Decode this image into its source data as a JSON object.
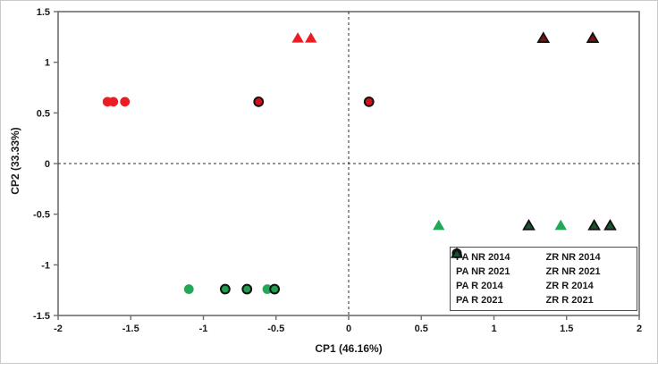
{
  "chart_data": {
    "type": "scatter",
    "xlabel": "CP1 (46.16%)",
    "ylabel": "CP2 (33.33%)",
    "xlim": [
      -2,
      2
    ],
    "ylim": [
      -1.5,
      1.5
    ],
    "x_ticks": [
      -2,
      -1.5,
      -1,
      -0.5,
      0,
      0.5,
      1,
      1.5,
      2
    ],
    "y_ticks": [
      1.5,
      1,
      0.5,
      0,
      -0.5,
      -1,
      -1.5
    ],
    "x_tick_labels": [
      "-2",
      "-1.5",
      "-1",
      "-0.5",
      "0",
      "0.5",
      "1",
      "1.5",
      "2"
    ],
    "y_tick_labels": [
      "1.5",
      "1",
      "0.5",
      "0",
      "-0.5",
      "-1",
      "-1.5"
    ],
    "grid": false,
    "reference_lines": {
      "vertical_at_x": 0,
      "horizontal_at_y": 0,
      "style": "dashed"
    },
    "legend_position": "bottom-right",
    "series": [
      {
        "name": "PA NR 2014",
        "marker": "circle",
        "fill": "#ed1c24",
        "outlined": false,
        "points": [
          [
            -1.66,
            0.61
          ],
          [
            -1.62,
            0.61
          ],
          [
            -1.54,
            0.61
          ]
        ]
      },
      {
        "name": "PA NR 2021",
        "marker": "triangle",
        "fill": "#ed1c24",
        "outlined": false,
        "points": [
          [
            -0.35,
            1.24
          ],
          [
            -0.26,
            1.24
          ]
        ]
      },
      {
        "name": "PA R 2014",
        "marker": "circle",
        "fill": "#23a857",
        "outlined": false,
        "points": [
          [
            -1.1,
            -1.24
          ],
          [
            -0.56,
            -1.24
          ]
        ]
      },
      {
        "name": "PA R 2021",
        "marker": "triangle",
        "fill": "#23a857",
        "outlined": false,
        "points": [
          [
            0.62,
            -0.61
          ],
          [
            1.46,
            -0.61
          ]
        ]
      },
      {
        "name": "ZR NR 2014",
        "marker": "circle",
        "fill": "#d6101b",
        "outlined": true,
        "points": [
          [
            -0.62,
            0.61
          ],
          [
            0.14,
            0.61
          ]
        ]
      },
      {
        "name": "ZR NR 2021",
        "marker": "triangle",
        "fill": "#7e1010",
        "outlined": true,
        "points": [
          [
            1.34,
            1.24
          ],
          [
            1.68,
            1.24
          ]
        ]
      },
      {
        "name": "ZR R 2014",
        "marker": "circle",
        "fill": "#1f9e4d",
        "outlined": true,
        "points": [
          [
            -0.85,
            -1.24
          ],
          [
            -0.7,
            -1.24
          ],
          [
            -0.51,
            -1.24
          ]
        ]
      },
      {
        "name": "ZR R 2021",
        "marker": "triangle",
        "fill": "#1b5230",
        "outlined": true,
        "points": [
          [
            1.24,
            -0.61
          ],
          [
            1.69,
            -0.61
          ],
          [
            1.8,
            -0.61
          ]
        ]
      }
    ],
    "colors": {
      "axis": "#6e6e6e",
      "reference_line": "#2b2b2b",
      "text": "#1a1a1a",
      "bright_red": "#ed1c24",
      "bright_green": "#23a857",
      "dark_red": "#7e1010",
      "dark_green": "#1b5230",
      "marker_outline": "#111111"
    }
  },
  "legend": {
    "items": [
      {
        "label": "PA NR 2014"
      },
      {
        "label": "ZR NR 2014"
      },
      {
        "label": "PA NR 2021"
      },
      {
        "label": "ZR NR 2021"
      },
      {
        "label": "PA R 2014"
      },
      {
        "label": "ZR R 2014"
      },
      {
        "label": "PA R 2021"
      },
      {
        "label": "ZR R 2021"
      }
    ]
  }
}
